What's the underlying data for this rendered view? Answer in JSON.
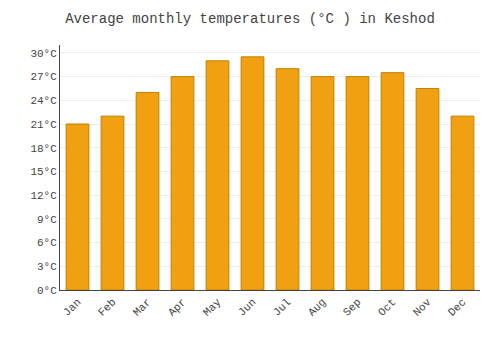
{
  "chart_data": {
    "type": "bar",
    "title": "Average monthly temperatures (°C ) in Keshod",
    "categories": [
      "Jan",
      "Feb",
      "Mar",
      "Apr",
      "May",
      "Jun",
      "Jul",
      "Aug",
      "Sep",
      "Oct",
      "Nov",
      "Dec"
    ],
    "values": [
      21,
      22,
      25,
      27,
      29,
      29.5,
      28,
      27,
      27,
      27.5,
      25.5,
      22
    ],
    "color": "#F0A010",
    "ylim": [
      0,
      31
    ],
    "yticks": [
      {
        "value": 0,
        "label": "0°C"
      },
      {
        "value": 3,
        "label": "3°C"
      },
      {
        "value": 6,
        "label": "6°C"
      },
      {
        "value": 9,
        "label": "9°C"
      },
      {
        "value": 12,
        "label": "12°C"
      },
      {
        "value": 15,
        "label": "15°C"
      },
      {
        "value": 18,
        "label": "18°C"
      },
      {
        "value": 21,
        "label": "21°C"
      },
      {
        "value": 24,
        "label": "24°C"
      },
      {
        "value": 27,
        "label": "27°C"
      },
      {
        "value": 30,
        "label": "30°C"
      }
    ],
    "grid": true
  }
}
